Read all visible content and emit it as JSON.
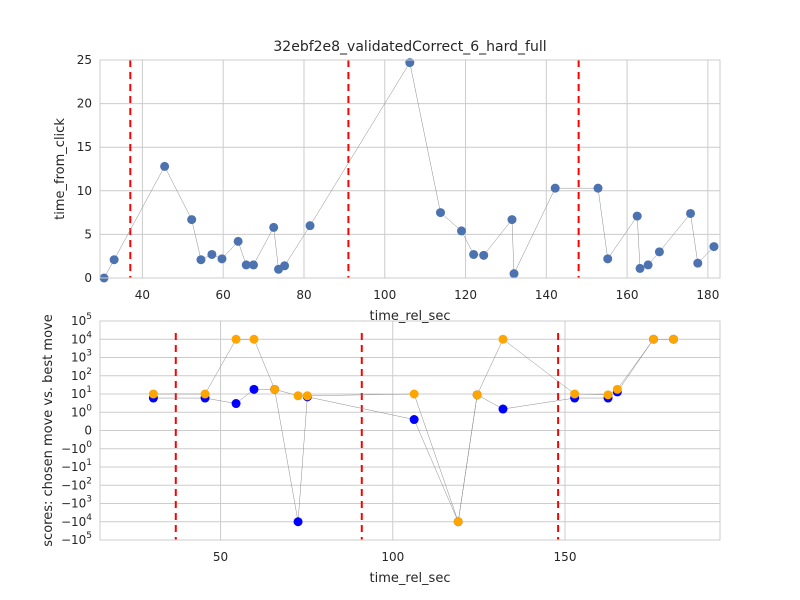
{
  "chart_data": [
    {
      "type": "scatter",
      "title": "32ebf2e8_validatedCorrect_6_hard_full",
      "xlabel": "time_rel_sec",
      "ylabel": "time_from_click",
      "xlim": [
        29.5,
        183
      ],
      "ylim": [
        0,
        25
      ],
      "xticks": [
        40,
        60,
        80,
        100,
        120,
        140,
        160,
        180
      ],
      "yticks": [
        0,
        5,
        10,
        15,
        20,
        25
      ],
      "grid": true,
      "marker_color": "#4c72b0",
      "vlines_color": "#ff0000",
      "vlines": [
        37,
        91,
        148
      ],
      "points": {
        "x": [
          30.5,
          33,
          45.5,
          52.2,
          54.5,
          57.2,
          59.7,
          63.7,
          65.7,
          67.5,
          72.5,
          73.7,
          75.2,
          81.5,
          106.2,
          113.8,
          119,
          122,
          124.5,
          131.5,
          132,
          142.2,
          152.8,
          155.2,
          162.5,
          163.2,
          165.2,
          168,
          175.7,
          177.5,
          181.5
        ],
        "y": [
          0,
          2.1,
          12.8,
          6.7,
          2.1,
          2.7,
          2.2,
          4.2,
          1.5,
          1.5,
          5.8,
          1,
          1.4,
          6,
          24.7,
          7.5,
          5.4,
          2.7,
          2.6,
          6.7,
          0.5,
          10.3,
          10.3,
          2.2,
          7.1,
          1.1,
          1.5,
          3,
          7.4,
          1.7,
          3.6
        ]
      }
    },
    {
      "type": "scatter",
      "xlabel": "time_rel_sec",
      "ylabel": "scores: chosen move vs. best move",
      "xlim": [
        15,
        195
      ],
      "yscale": "symlog",
      "ylim": [
        -100000,
        100000
      ],
      "xticks": [
        50,
        100,
        150
      ],
      "yticks": [
        {
          "v": 100000,
          "b": "10",
          "e": "5"
        },
        {
          "v": 10000,
          "b": "10",
          "e": "4"
        },
        {
          "v": 1000,
          "b": "10",
          "e": "3"
        },
        {
          "v": 100,
          "b": "10",
          "e": "2"
        },
        {
          "v": 10,
          "b": "10",
          "e": "1"
        },
        {
          "v": 1,
          "b": "10",
          "e": "0"
        },
        {
          "v": 0,
          "b": "0",
          "e": ""
        },
        {
          "v": -1,
          "b": "−10",
          "e": "0"
        },
        {
          "v": -10,
          "b": "−10",
          "e": "1"
        },
        {
          "v": -100,
          "b": "−10",
          "e": "2"
        },
        {
          "v": -1000,
          "b": "−10",
          "e": "3"
        },
        {
          "v": -10000,
          "b": "−10",
          "e": "4"
        },
        {
          "v": -100000,
          "b": "−10",
          "e": "5"
        }
      ],
      "grid": true,
      "vlines_color": "#ff0000",
      "vlines": [
        37,
        91,
        148
      ],
      "series": [
        {
          "color": "#0000ff",
          "x": [
            30.5,
            45.5,
            54.5,
            59.7,
            65.7,
            72.5,
            75.2,
            106.2,
            119,
            124.5,
            132,
            152.8,
            162.5,
            165.2,
            175.7,
            181.5
          ],
          "y": [
            6,
            6,
            3,
            18,
            18,
            -10000,
            7,
            0.6,
            -10000,
            9,
            1.5,
            6,
            6,
            13,
            10000,
            10000
          ]
        },
        {
          "color": "#ffa500",
          "x": [
            30.5,
            45.5,
            54.5,
            59.7,
            65.7,
            72.5,
            75.2,
            106.2,
            119,
            124.5,
            132,
            152.8,
            162.5,
            165.2,
            175.7,
            181.5
          ],
          "y": [
            10,
            10,
            10000,
            10000,
            18,
            8,
            8,
            10,
            -10000,
            9,
            10000,
            10,
            9,
            18,
            10000,
            10000
          ]
        }
      ]
    }
  ]
}
